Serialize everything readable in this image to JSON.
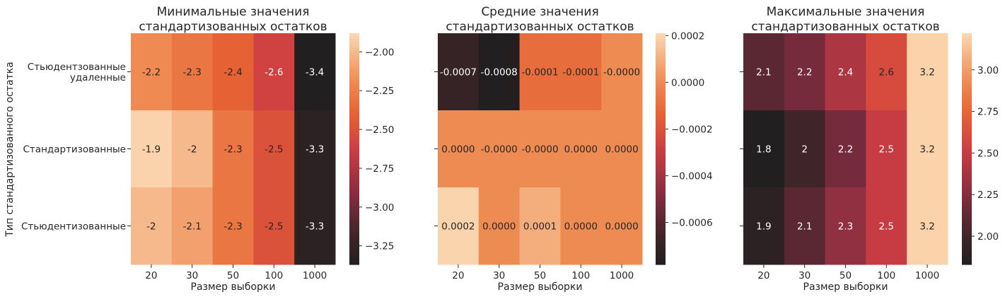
{
  "figure": {
    "ylabel": "Тип стандартизованного остатка",
    "row_labels": [
      [
        "Стьюдентзованные",
        "удаленные"
      ],
      [
        "Стандартизованные"
      ],
      [
        "Стьюдентизованные"
      ]
    ]
  },
  "chart_data": [
    {
      "type": "heatmap",
      "title": [
        "Минимальные значения",
        "стандартизованных остатков"
      ],
      "xlabel": "Размер выборки",
      "categories": [
        "20",
        "30",
        "50",
        "100",
        "1000"
      ],
      "values": [
        [
          -2.2,
          -2.3,
          -2.4,
          -2.6,
          -3.4
        ],
        [
          -1.9,
          -2.0,
          -2.3,
          -2.5,
          -3.3
        ],
        [
          -2.0,
          -2.1,
          -2.3,
          -2.5,
          -3.3
        ]
      ],
      "labels": [
        [
          "-2.2",
          "-2.3",
          "-2.4",
          "-2.6",
          "-3.4"
        ],
        [
          "-1.9",
          "-2",
          "-2.3",
          "-2.5",
          "-3.3"
        ],
        [
          "-2",
          "-2.1",
          "-2.3",
          "-2.5",
          "-3.3"
        ]
      ],
      "colorbar": {
        "range": [
          -3.37,
          -1.88
        ],
        "ticks": [
          -2.0,
          -2.25,
          -2.5,
          -2.75,
          -3.0,
          -3.25
        ],
        "tick_labels": [
          "−2.00",
          "−2.25",
          "−2.50",
          "−2.75",
          "−3.00",
          "−3.25"
        ]
      }
    },
    {
      "type": "heatmap",
      "title": [
        "Средние значения",
        "стандартизованных остатков"
      ],
      "xlabel": "Размер выборки",
      "categories": [
        "20",
        "30",
        "50",
        "100",
        "1000"
      ],
      "values": [
        [
          -0.0007,
          -0.0008,
          -0.0001,
          -0.0001,
          0.0
        ],
        [
          0.0,
          0.0,
          0.0,
          0.0,
          0.0
        ],
        [
          0.0002,
          0.0,
          0.0001,
          0.0,
          0.0
        ]
      ],
      "labels": [
        [
          "-0.0007",
          "-0.0008",
          "-0.0001",
          "-0.0001",
          "-0.0000"
        ],
        [
          "0.0000",
          "-0.0000",
          "-0.0000",
          "0.0000",
          "0.0000"
        ],
        [
          "0.0002",
          "0.0000",
          "0.0001",
          "0.0000",
          "0.0000"
        ]
      ],
      "colorbar": {
        "range": [
          -0.00078,
          0.00021
        ],
        "ticks": [
          0.0002,
          0.0,
          -0.0002,
          -0.0004,
          -0.0006
        ],
        "tick_labels": [
          "0.0002",
          "0.0000",
          "−0.0002",
          "−0.0004",
          "−0.0006"
        ]
      }
    },
    {
      "type": "heatmap",
      "title": [
        "Максимальные значения",
        "стандартизованных остатков"
      ],
      "xlabel": "Размер выборки",
      "categories": [
        "20",
        "30",
        "50",
        "100",
        "1000"
      ],
      "values": [
        [
          2.1,
          2.2,
          2.4,
          2.6,
          3.2
        ],
        [
          1.8,
          2.0,
          2.2,
          2.5,
          3.2
        ],
        [
          1.9,
          2.1,
          2.3,
          2.5,
          3.2
        ]
      ],
      "labels": [
        [
          "2.1",
          "2.2",
          "2.4",
          "2.6",
          "3.2"
        ],
        [
          "1.8",
          "2",
          "2.2",
          "2.5",
          "3.2"
        ],
        [
          "1.9",
          "2.1",
          "2.3",
          "2.5",
          "3.2"
        ]
      ],
      "colorbar": {
        "range": [
          1.83,
          3.22
        ],
        "ticks": [
          3.0,
          2.75,
          2.5,
          2.25,
          2.0
        ],
        "tick_labels": [
          "3.00",
          "2.75",
          "2.50",
          "2.25",
          "2.00"
        ]
      }
    }
  ]
}
